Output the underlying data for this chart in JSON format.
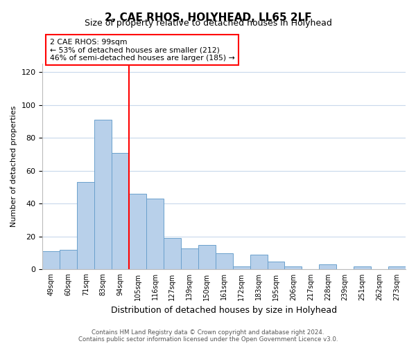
{
  "title": "2, CAE RHOS, HOLYHEAD, LL65 2LF",
  "subtitle": "Size of property relative to detached houses in Holyhead",
  "xlabel": "Distribution of detached houses by size in Holyhead",
  "ylabel": "Number of detached properties",
  "bar_labels": [
    "49sqm",
    "60sqm",
    "71sqm",
    "83sqm",
    "94sqm",
    "105sqm",
    "116sqm",
    "127sqm",
    "139sqm",
    "150sqm",
    "161sqm",
    "172sqm",
    "183sqm",
    "195sqm",
    "206sqm",
    "217sqm",
    "228sqm",
    "239sqm",
    "251sqm",
    "262sqm",
    "273sqm"
  ],
  "bar_values": [
    11,
    12,
    53,
    91,
    71,
    46,
    43,
    19,
    13,
    15,
    10,
    2,
    9,
    5,
    2,
    0,
    3,
    0,
    2,
    0,
    2
  ],
  "bar_color": "#b8d0ea",
  "bar_edge_color": "#6aa0cc",
  "ylim": [
    0,
    125
  ],
  "yticks": [
    0,
    20,
    40,
    60,
    80,
    100,
    120
  ],
  "red_line_x": 4.5,
  "annotation_line1": "2 CAE RHOS: 99sqm",
  "annotation_line2": "← 53% of detached houses are smaller (212)",
  "annotation_line3": "46% of semi-detached houses are larger (185) →",
  "footer_text": "Contains HM Land Registry data © Crown copyright and database right 2024.\nContains public sector information licensed under the Open Government Licence v3.0.",
  "background_color": "#ffffff",
  "grid_color": "#c8d8ec"
}
